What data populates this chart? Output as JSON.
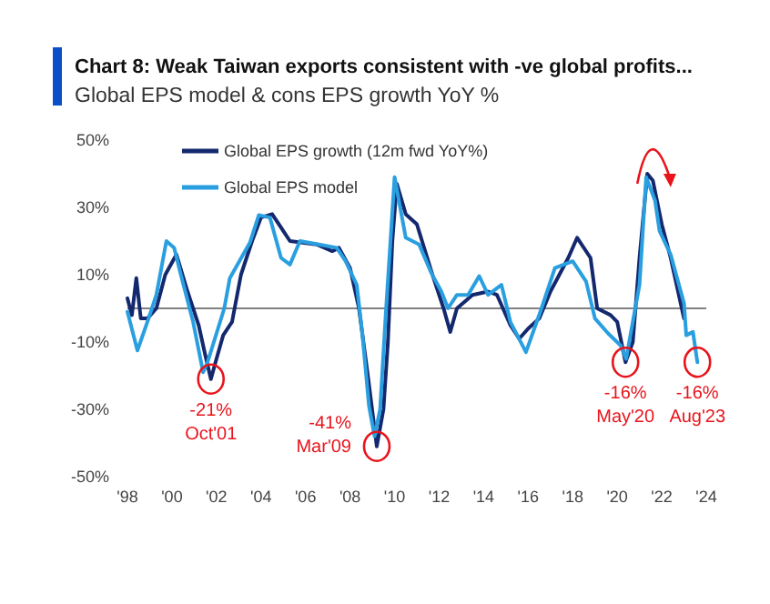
{
  "chart_data": {
    "type": "line",
    "title": "Chart 8: Weak Taiwan exports consistent with -ve global profits...",
    "subtitle": "Global EPS model & cons EPS growth YoY %",
    "xlim": [
      1998,
      2024
    ],
    "xticks": [
      {
        "value": 1998,
        "label": "'98"
      },
      {
        "value": 2000,
        "label": "'00"
      },
      {
        "value": 2002,
        "label": "'02"
      },
      {
        "value": 2004,
        "label": "'04"
      },
      {
        "value": 2006,
        "label": "'06"
      },
      {
        "value": 2008,
        "label": "'08"
      },
      {
        "value": 2010,
        "label": "'10"
      },
      {
        "value": 2012,
        "label": "'12"
      },
      {
        "value": 2014,
        "label": "'14"
      },
      {
        "value": 2016,
        "label": "'16"
      },
      {
        "value": 2018,
        "label": "'18"
      },
      {
        "value": 2020,
        "label": "'20"
      },
      {
        "value": 2022,
        "label": "'22"
      },
      {
        "value": 2024,
        "label": "'24"
      }
    ],
    "ylim": [
      -50,
      50
    ],
    "yticks": [
      {
        "value": -50,
        "label": "-50%"
      },
      {
        "value": -30,
        "label": "-30%"
      },
      {
        "value": -10,
        "label": "-10%"
      },
      {
        "value": 10,
        "label": "10%"
      },
      {
        "value": 30,
        "label": "30%"
      },
      {
        "value": 50,
        "label": "50%"
      }
    ],
    "grid": false,
    "legend": "top left",
    "series": [
      {
        "name": "Global EPS growth (12m fwd YoY%)",
        "color": "#14286e",
        "x": [
          1998.0,
          1998.2,
          1998.4,
          1998.6,
          1998.9,
          1999.3,
          1999.7,
          2000.2,
          2000.7,
          2001.2,
          2001.5,
          2001.75,
          2002.0,
          2002.3,
          2002.7,
          2003.1,
          2003.6,
          2004.0,
          2004.5,
          2004.9,
          2005.3,
          2006.5,
          2007.2,
          2007.5,
          2008.0,
          2008.4,
          2008.8,
          2009.2,
          2009.5,
          2009.7,
          2009.9,
          2010.1,
          2010.5,
          2011.0,
          2011.7,
          2012.2,
          2012.5,
          2012.8,
          2013.5,
          2014.2,
          2014.6,
          2015.2,
          2015.6,
          2016.0,
          2016.5,
          2017.0,
          2017.8,
          2018.2,
          2018.8,
          2019.1,
          2019.7,
          2020.0,
          2020.37,
          2020.7,
          2021.0,
          2021.35,
          2021.6,
          2022.0,
          2022.4,
          2022.9,
          2023.0
        ],
        "values": [
          3,
          -2,
          9,
          -3,
          -3,
          0,
          10,
          16,
          5,
          -5,
          -14,
          -21,
          -15,
          -8,
          -4,
          10,
          20,
          27,
          28,
          24,
          20,
          19,
          17,
          18,
          12,
          0,
          -20,
          -41,
          -30,
          -10,
          20,
          37,
          28,
          25,
          10,
          0,
          -7,
          0,
          4,
          5,
          4,
          -5,
          -9,
          -6,
          -3,
          5,
          15,
          21,
          15,
          0,
          -2,
          -4,
          -16,
          -10,
          15,
          40,
          38,
          25,
          15,
          0,
          -3
        ]
      },
      {
        "name": "Global EPS model",
        "color": "#2a9fe0",
        "x": [
          1998.0,
          1998.45,
          1998.95,
          1999.3,
          1999.75,
          2000.1,
          2000.4,
          2000.95,
          2001.4,
          2001.6,
          2002.35,
          2002.6,
          2003.5,
          2003.9,
          2004.4,
          2004.9,
          2005.3,
          2005.75,
          2006.6,
          2007.4,
          2007.8,
          2008.3,
          2008.55,
          2008.85,
          2009.1,
          2009.35,
          2009.6,
          2010.0,
          2010.5,
          2011.1,
          2011.65,
          2012.1,
          2012.4,
          2012.8,
          2013.3,
          2013.8,
          2014.2,
          2014.8,
          2015.2,
          2015.9,
          2016.6,
          2017.2,
          2018.0,
          2018.6,
          2019.0,
          2019.6,
          2020.15,
          2020.4,
          2021.0,
          2021.3,
          2021.7,
          2021.9,
          2022.4,
          2023.0,
          2023.1,
          2023.4,
          2023.6
        ],
        "values": [
          -1,
          -12.5,
          -3,
          4,
          20,
          18,
          10,
          -4,
          -19,
          -16,
          0,
          9,
          19.5,
          27.7,
          27,
          15,
          13,
          20,
          19,
          18,
          14,
          7,
          -7.5,
          -29,
          -38,
          -30,
          -2,
          39,
          21,
          19,
          10.5,
          5,
          0,
          4,
          4,
          9.6,
          4,
          7,
          -4,
          -13,
          0,
          12,
          14,
          8,
          -3,
          -7.5,
          -11,
          -15,
          7,
          39,
          32,
          23,
          16,
          1.5,
          -8,
          -7,
          -16
        ]
      }
    ],
    "ref_lines": [
      {
        "axis": "y",
        "value": 0,
        "color": "#808080"
      }
    ],
    "annotations": [
      {
        "text": "-21%\nOct'01",
        "x": 2001.75,
        "y": -21
      },
      {
        "text": "-41%\nMar'09",
        "x": 2009.2,
        "y": -41
      },
      {
        "text": "-16%\nMay'20",
        "x": 2020.37,
        "y": -16
      },
      {
        "text": "-16%\nAug'23",
        "x": 2023.6,
        "y": -16
      }
    ]
  }
}
